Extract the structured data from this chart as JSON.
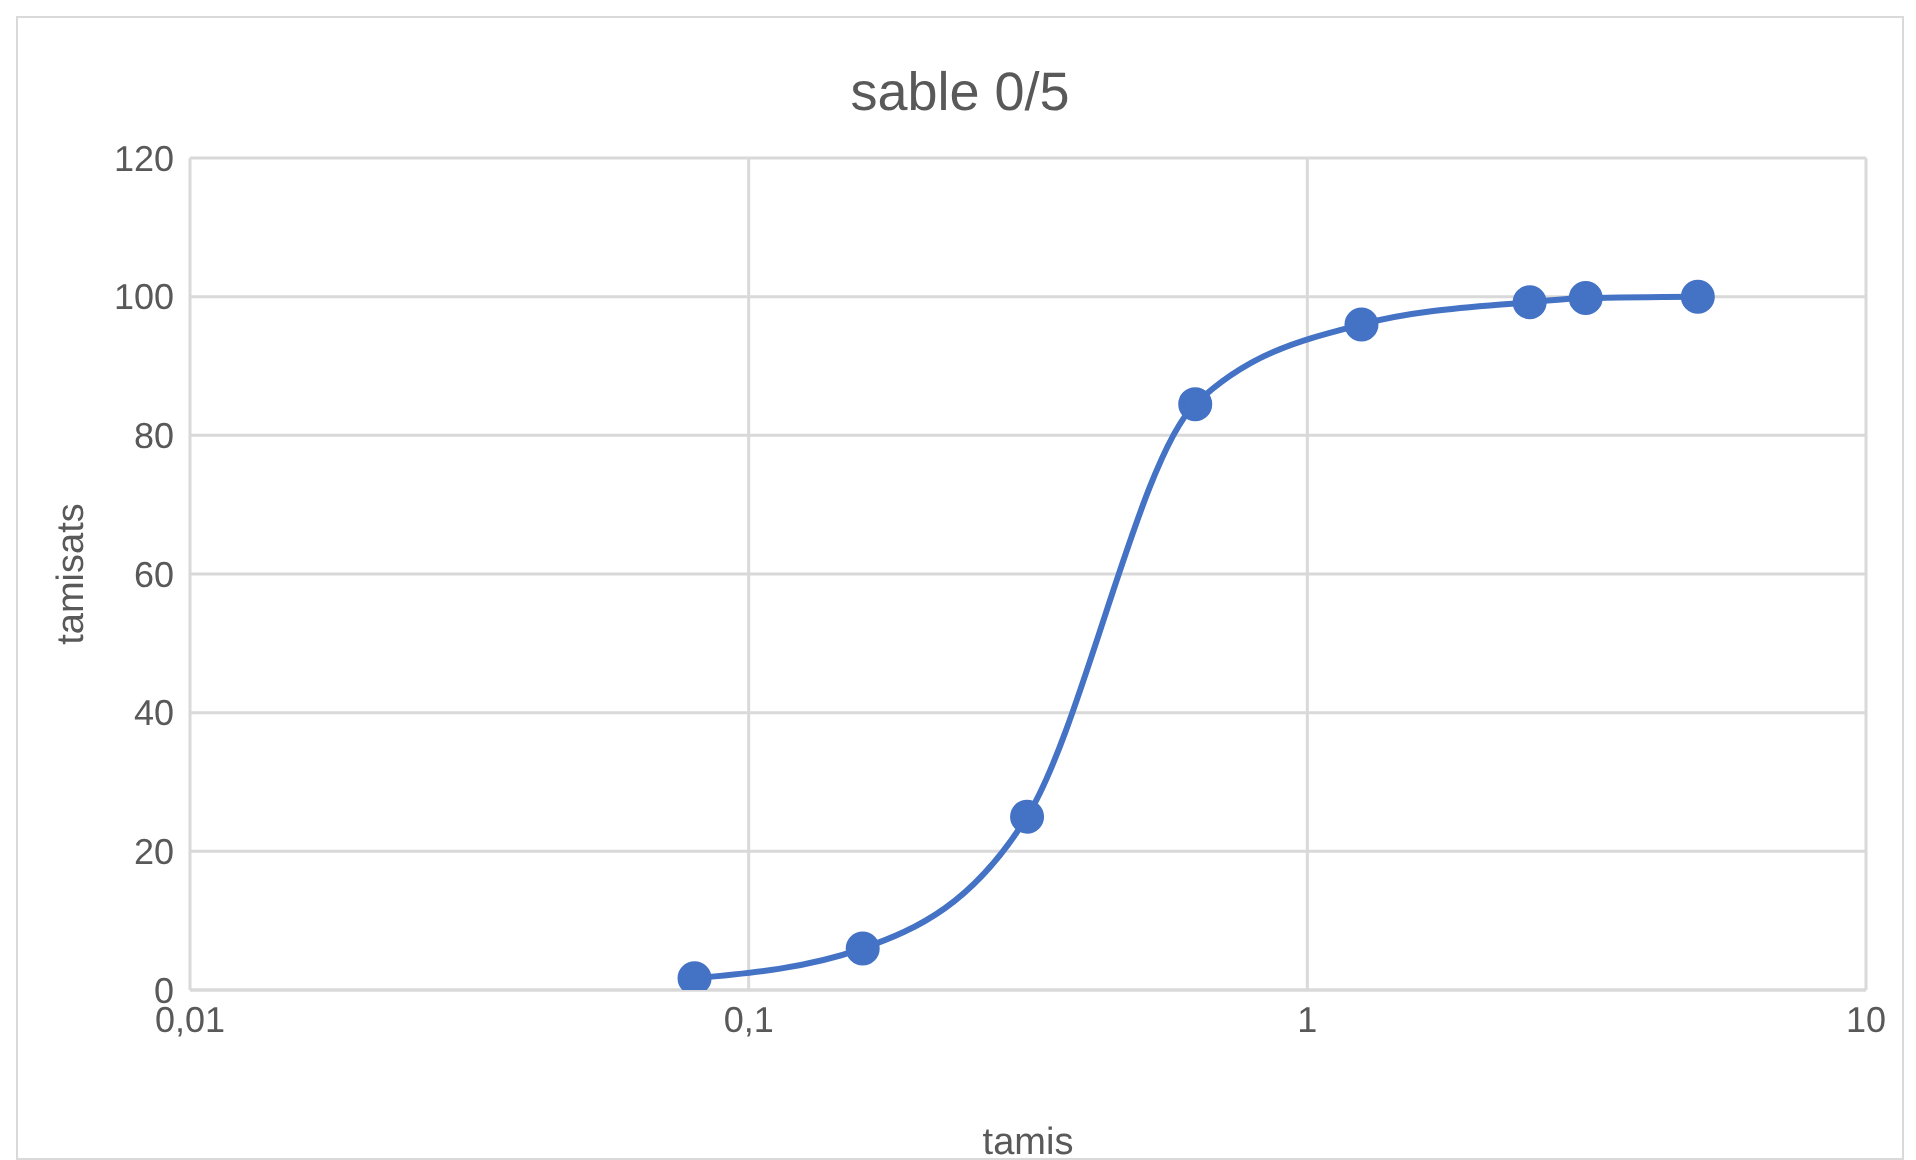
{
  "chart_data": {
    "type": "line",
    "title": "sable 0/5",
    "xlabel": "tamis",
    "ylabel": "tamisats",
    "x": [
      0.08,
      0.16,
      0.315,
      0.63,
      1.25,
      2.5,
      3.15,
      5
    ],
    "values": [
      1.7,
      6,
      25,
      84.5,
      96,
      99.2,
      99.8,
      100
    ],
    "color": "#4472c4",
    "marker": "circle",
    "log": "x",
    "grid": true,
    "xlim": [
      0.01,
      10
    ],
    "xticks": [
      {
        "value": 0.01,
        "label": "0,01"
      },
      {
        "value": 0.1,
        "label": "0,1"
      },
      1,
      10
    ],
    "ylim": [
      0,
      120
    ],
    "yticks": [
      0,
      20,
      40,
      60,
      80,
      100,
      120
    ]
  }
}
